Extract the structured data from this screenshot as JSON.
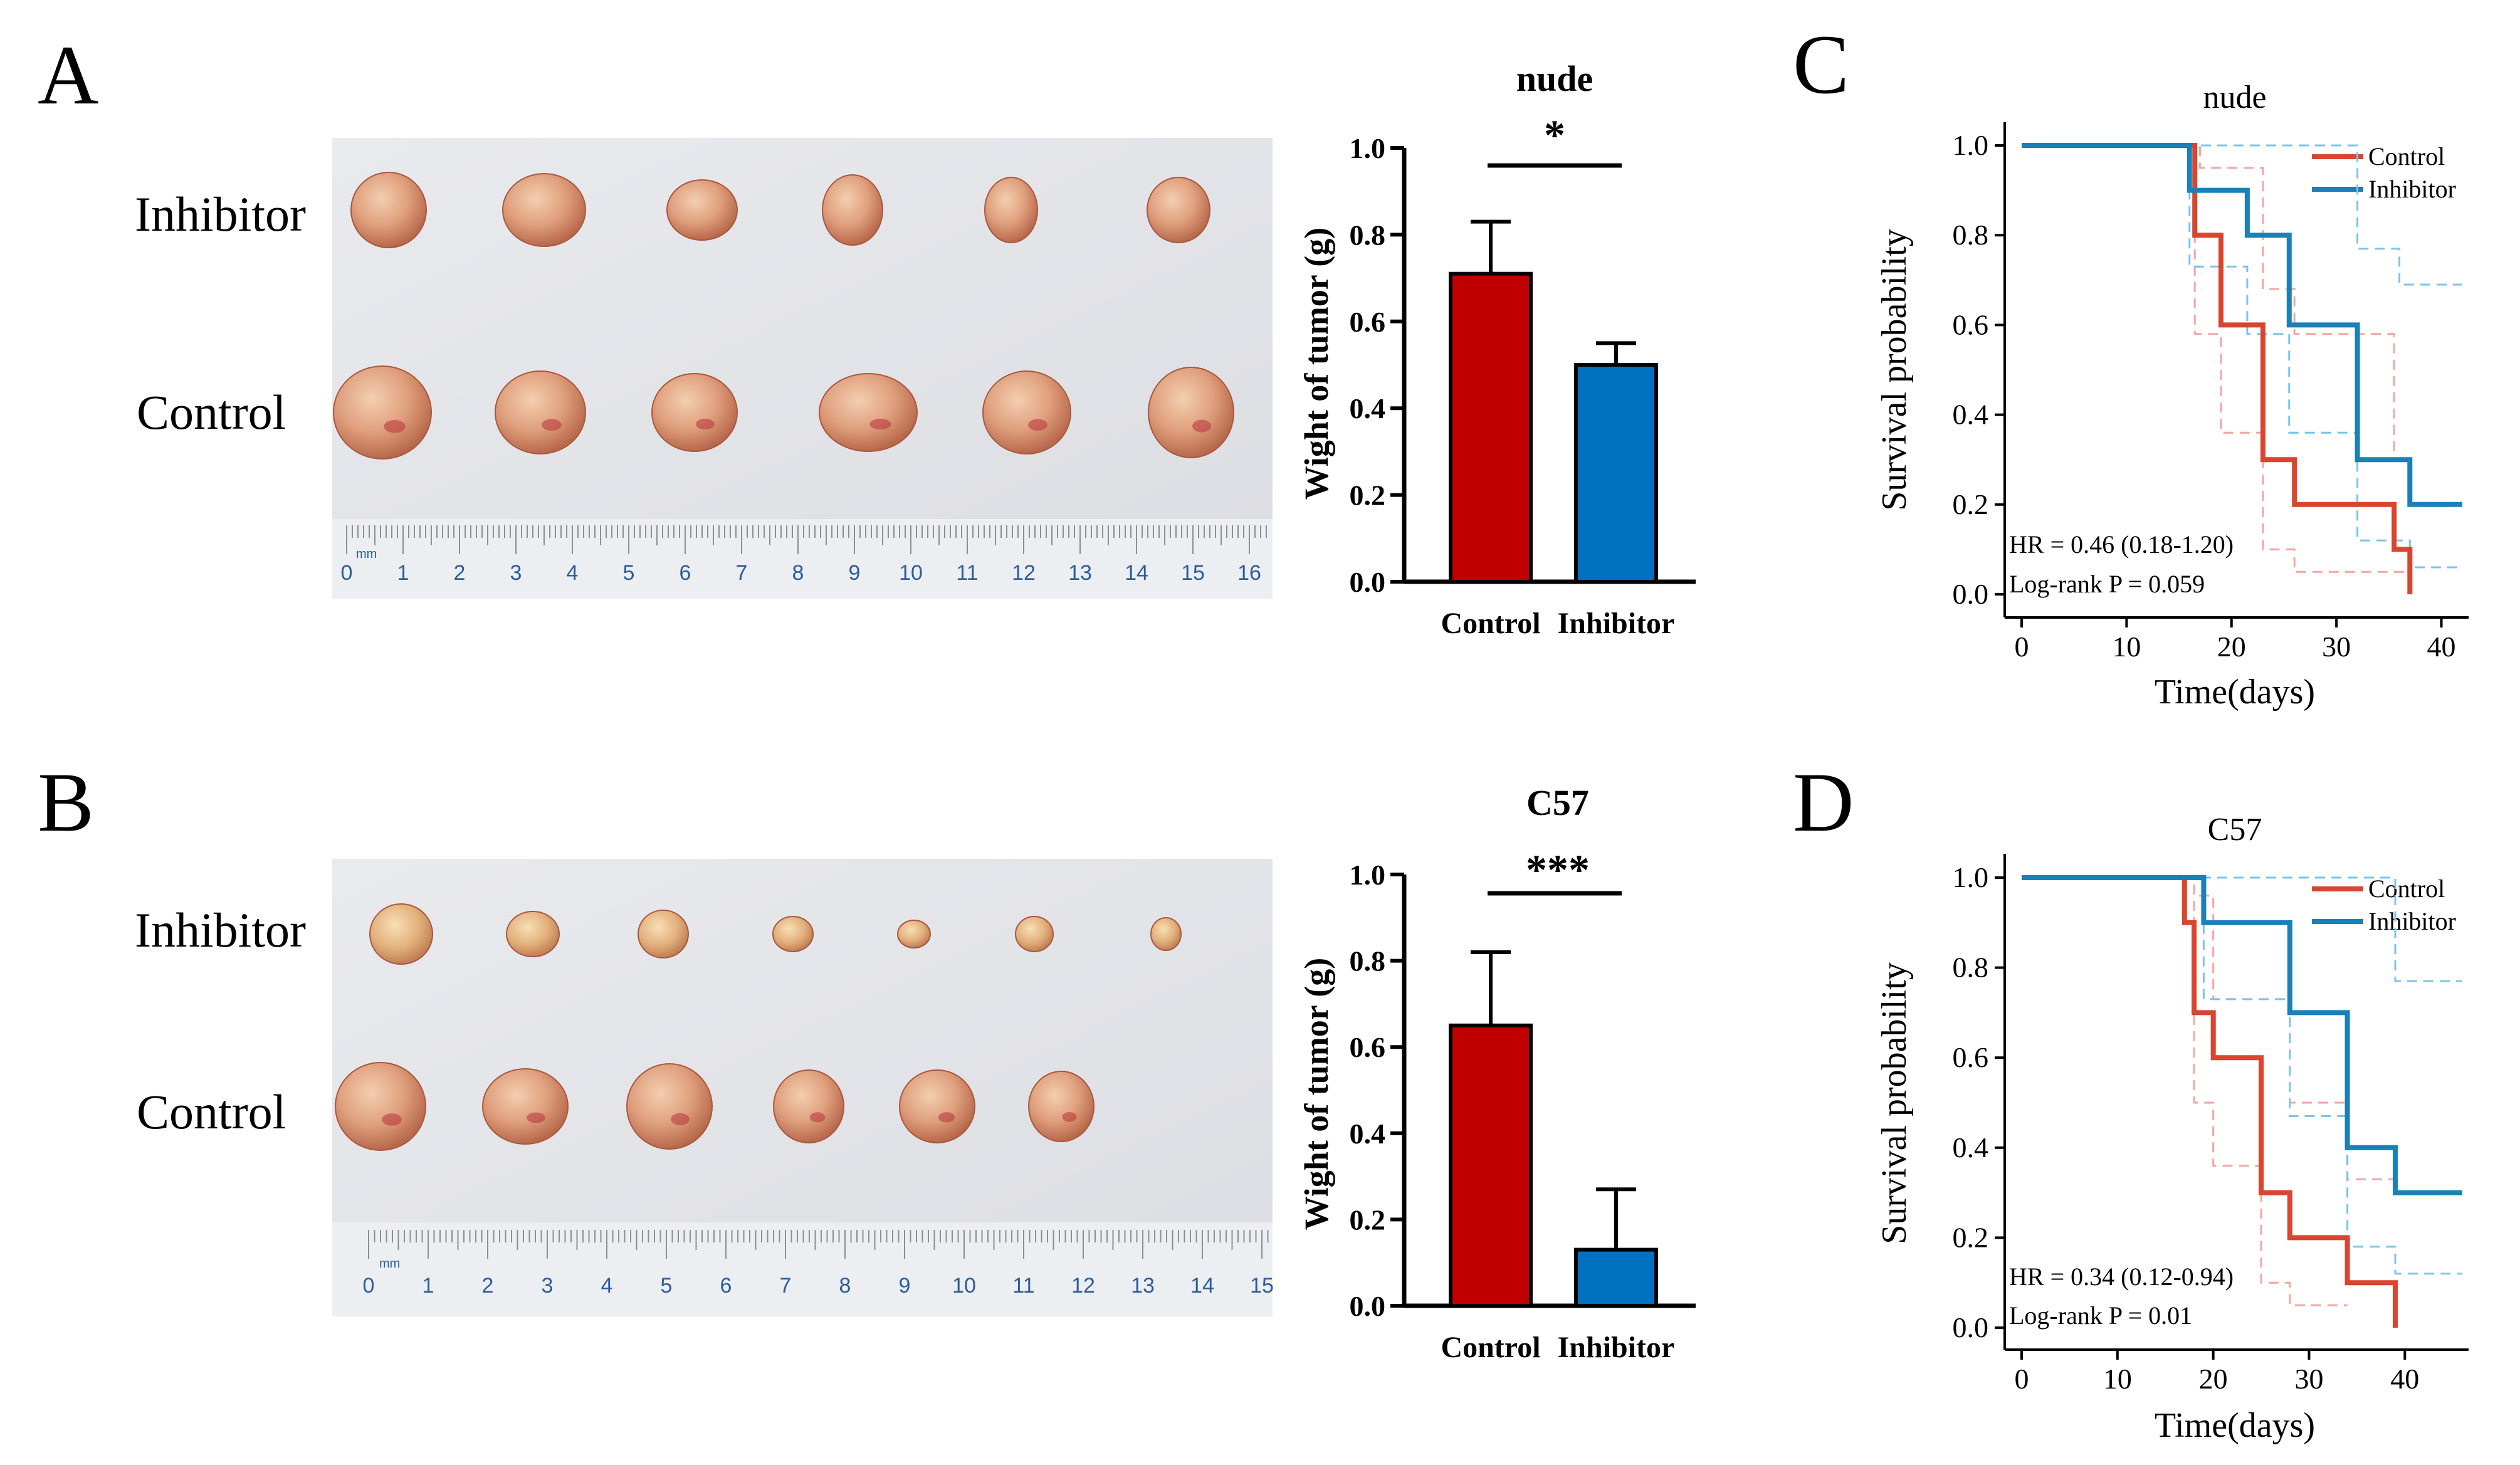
{
  "panels": {
    "A": {
      "letter": "A",
      "photo": {
        "row_labels": [
          "Inhibitor",
          "Control"
        ],
        "ruler_unit": "mm",
        "ruler_numbers": [
          "0",
          "1",
          "2",
          "3",
          "4",
          "5",
          "6",
          "7",
          "8",
          "9",
          "10",
          "11",
          "12",
          "13",
          "14",
          "15",
          "16"
        ],
        "inhibitor_count": 6,
        "control_count": 6
      }
    },
    "B": {
      "letter": "B",
      "photo": {
        "row_labels": [
          "Inhibitor",
          "Control"
        ],
        "ruler_unit": "mm",
        "ruler_numbers": [
          "0",
          "1",
          "2",
          "3",
          "4",
          "5",
          "6",
          "7",
          "8",
          "9",
          "10",
          "11",
          "12",
          "13",
          "14",
          "15"
        ],
        "inhibitor_count": 7,
        "control_count": 6
      }
    },
    "C": {
      "letter": "C"
    },
    "D": {
      "letter": "D"
    }
  },
  "colors": {
    "control": "#c00000",
    "inhibitor": "#0070c0",
    "km_control": "#d9452f",
    "km_inhibitor": "#1a80b8",
    "km_control_ci": "#f2a6a0",
    "km_inhibitor_ci": "#7cc4e8"
  },
  "chart_data": [
    {
      "id": "bar-nude",
      "type": "bar",
      "title": "nude",
      "ylabel": "Wight of tumor (g)",
      "xlabel": "",
      "categories": [
        "Control",
        "Inhibitor"
      ],
      "values": [
        0.71,
        0.5
      ],
      "errors": [
        0.12,
        0.05
      ],
      "ylim": [
        0,
        1.0
      ],
      "yticks": [
        "0.0",
        "0.2",
        "0.4",
        "0.6",
        "0.8",
        "1.0"
      ],
      "significance": "*"
    },
    {
      "id": "bar-c57",
      "type": "bar",
      "title": "C57",
      "ylabel": "Wight of tumor (g)",
      "xlabel": "",
      "categories": [
        "Control",
        "Inhibitor"
      ],
      "values": [
        0.65,
        0.13
      ],
      "errors": [
        0.17,
        0.14
      ],
      "ylim": [
        0,
        1.0
      ],
      "yticks": [
        "0.0",
        "0.2",
        "0.4",
        "0.6",
        "0.8",
        "1.0"
      ],
      "significance": "***"
    },
    {
      "id": "km-nude",
      "type": "line",
      "title": "nude",
      "xlabel": "Time(days)",
      "ylabel": "Survival probability",
      "xlim": [
        0,
        42
      ],
      "ylim": [
        0,
        1.0
      ],
      "xticks": [
        "0",
        "10",
        "20",
        "30",
        "40"
      ],
      "yticks": [
        "0.0",
        "0.2",
        "0.4",
        "0.6",
        "0.8",
        "1.0"
      ],
      "legend": [
        "Control",
        "Inhibitor"
      ],
      "hr_text": "HR = 0.46 (0.18-1.20)",
      "p_text": "Log-rank P = 0.059",
      "series": [
        {
          "name": "Control",
          "x": [
            0,
            16.5,
            16.5,
            19,
            19,
            23,
            23,
            26,
            26,
            35.5,
            35.5,
            37,
            37
          ],
          "y": [
            1,
            1,
            0.8,
            0.8,
            0.6,
            0.6,
            0.3,
            0.3,
            0.2,
            0.2,
            0.1,
            0.1,
            0
          ]
        },
        {
          "name": "Inhibitor",
          "x": [
            0,
            16,
            16,
            21.5,
            21.5,
            25.5,
            25.5,
            32,
            32,
            37,
            37,
            42
          ],
          "y": [
            1,
            1,
            0.9,
            0.9,
            0.8,
            0.8,
            0.6,
            0.6,
            0.3,
            0.3,
            0.2,
            0.2
          ]
        },
        {
          "name": "Control upper CI",
          "x": [
            0,
            17,
            17,
            23,
            23,
            26,
            26,
            35.5,
            35.5,
            37
          ],
          "y": [
            1,
            1,
            0.95,
            0.95,
            0.68,
            0.68,
            0.58,
            0.58,
            0.3,
            0.3
          ]
        },
        {
          "name": "Control lower CI",
          "x": [
            0,
            16.5,
            16.5,
            19,
            19,
            23,
            23,
            26,
            26,
            37
          ],
          "y": [
            1,
            1,
            0.58,
            0.58,
            0.36,
            0.36,
            0.1,
            0.1,
            0.05,
            0.05
          ]
        },
        {
          "name": "Inhibitor upper CI",
          "x": [
            0,
            17,
            17,
            32,
            32,
            36,
            36,
            42
          ],
          "y": [
            1,
            1,
            1,
            1,
            0.77,
            0.77,
            0.69,
            0.69
          ]
        },
        {
          "name": "Inhibitor lower CI",
          "x": [
            0,
            16,
            16,
            21.5,
            21.5,
            25.5,
            25.5,
            32,
            32,
            37,
            37,
            42
          ],
          "y": [
            1,
            1,
            0.73,
            0.73,
            0.58,
            0.58,
            0.36,
            0.36,
            0.12,
            0.12,
            0.06,
            0.06
          ]
        }
      ]
    },
    {
      "id": "km-c57",
      "type": "line",
      "title": "C57",
      "xlabel": "Time(days)",
      "ylabel": "Survival probability",
      "xlim": [
        0,
        46
      ],
      "ylim": [
        0,
        1.0
      ],
      "xticks": [
        "0",
        "10",
        "20",
        "30",
        "40"
      ],
      "yticks": [
        "0.0",
        "0.2",
        "0.4",
        "0.6",
        "0.8",
        "1.0"
      ],
      "legend": [
        "Control",
        "Inhibitor"
      ],
      "hr_text": "HR = 0.34 (0.12-0.94)",
      "p_text": "Log-rank P = 0.01",
      "series": [
        {
          "name": "Control",
          "x": [
            0,
            17,
            17,
            18,
            18,
            20,
            20,
            25,
            25,
            28,
            28,
            34,
            34,
            39,
            39
          ],
          "y": [
            1,
            1,
            0.9,
            0.9,
            0.7,
            0.7,
            0.6,
            0.6,
            0.3,
            0.3,
            0.2,
            0.2,
            0.1,
            0.1,
            0
          ]
        },
        {
          "name": "Inhibitor",
          "x": [
            0,
            19,
            19,
            28,
            28,
            34,
            34,
            39,
            39,
            46
          ],
          "y": [
            1,
            1,
            0.9,
            0.9,
            0.7,
            0.7,
            0.4,
            0.4,
            0.3,
            0.3
          ]
        },
        {
          "name": "Control upper CI",
          "x": [
            0,
            18,
            18,
            20,
            20,
            28,
            28,
            34,
            34,
            39
          ],
          "y": [
            1,
            1,
            0.96,
            0.96,
            0.73,
            0.73,
            0.5,
            0.5,
            0.33,
            0.33
          ]
        },
        {
          "name": "Control lower CI",
          "x": [
            0,
            18,
            18,
            20,
            20,
            25,
            25,
            28,
            28,
            34
          ],
          "y": [
            1,
            1,
            0.5,
            0.5,
            0.36,
            0.36,
            0.1,
            0.1,
            0.05,
            0.05
          ]
        },
        {
          "name": "Inhibitor upper CI",
          "x": [
            0,
            19,
            19,
            39,
            39,
            46
          ],
          "y": [
            1,
            1,
            1,
            1,
            0.77,
            0.77
          ]
        },
        {
          "name": "Inhibitor lower CI",
          "x": [
            0,
            19,
            19,
            28,
            28,
            34,
            34,
            39,
            39,
            46
          ],
          "y": [
            1,
            1,
            0.73,
            0.73,
            0.47,
            0.47,
            0.18,
            0.18,
            0.12,
            0.12
          ]
        }
      ]
    }
  ]
}
